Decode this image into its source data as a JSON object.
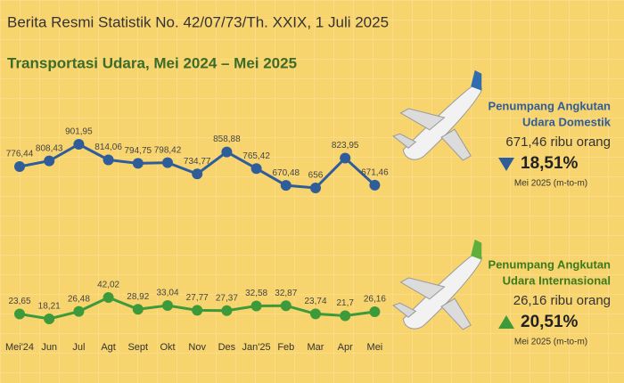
{
  "header": {
    "release": "Berita Resmi Statistik No. 42/07/73/Th. XXIX, 1 Juli 2025",
    "title": "Transportasi Udara, Mei 2024 – Mei 2025"
  },
  "chart_data": [
    {
      "type": "line",
      "color": "#2f5d9a",
      "values": [
        776.44,
        808.43,
        901.95,
        814.06,
        794.75,
        798.42,
        734.77,
        858.88,
        765.42,
        670.48,
        656,
        823.95,
        671.46
      ],
      "value_labels": [
        "776,44",
        "808,43",
        "901,95",
        "814,06",
        "794,75",
        "798,42",
        "734,77",
        "858,88",
        "765,42",
        "670,48",
        "656",
        "823,95",
        "671,46"
      ],
      "panel": {
        "title": [
          "Penumpang Angkutan",
          "Udara Domestik"
        ],
        "value": "671,46 ribu orang",
        "change": "18,51%",
        "trend": "down",
        "period": "Mei 2025 (m-to-m)"
      }
    },
    {
      "type": "line",
      "color": "#3d9a3a",
      "categories": [
        "Mei'24",
        "Jun",
        "Jul",
        "Agt",
        "Sept",
        "Okt",
        "Nov",
        "Des",
        "Jan'25",
        "Feb",
        "Mar",
        "Apr",
        "Mei"
      ],
      "values": [
        23.65,
        18.21,
        26.48,
        42.02,
        28.92,
        33.04,
        27.77,
        27.37,
        32.58,
        32.87,
        23.74,
        21.7,
        26.16
      ],
      "value_labels": [
        "23,65",
        "18,21",
        "26,48",
        "42,02",
        "28,92",
        "33,04",
        "27,77",
        "27,37",
        "32,58",
        "32,87",
        "23,74",
        "21,7",
        "26,16"
      ],
      "panel": {
        "title": [
          "Penumpang Angkutan",
          "Udara Internasional"
        ],
        "value": "26,16 ribu orang",
        "change": "20,51%",
        "trend": "up",
        "period": "Mei 2025 (m-to-m)"
      }
    }
  ]
}
